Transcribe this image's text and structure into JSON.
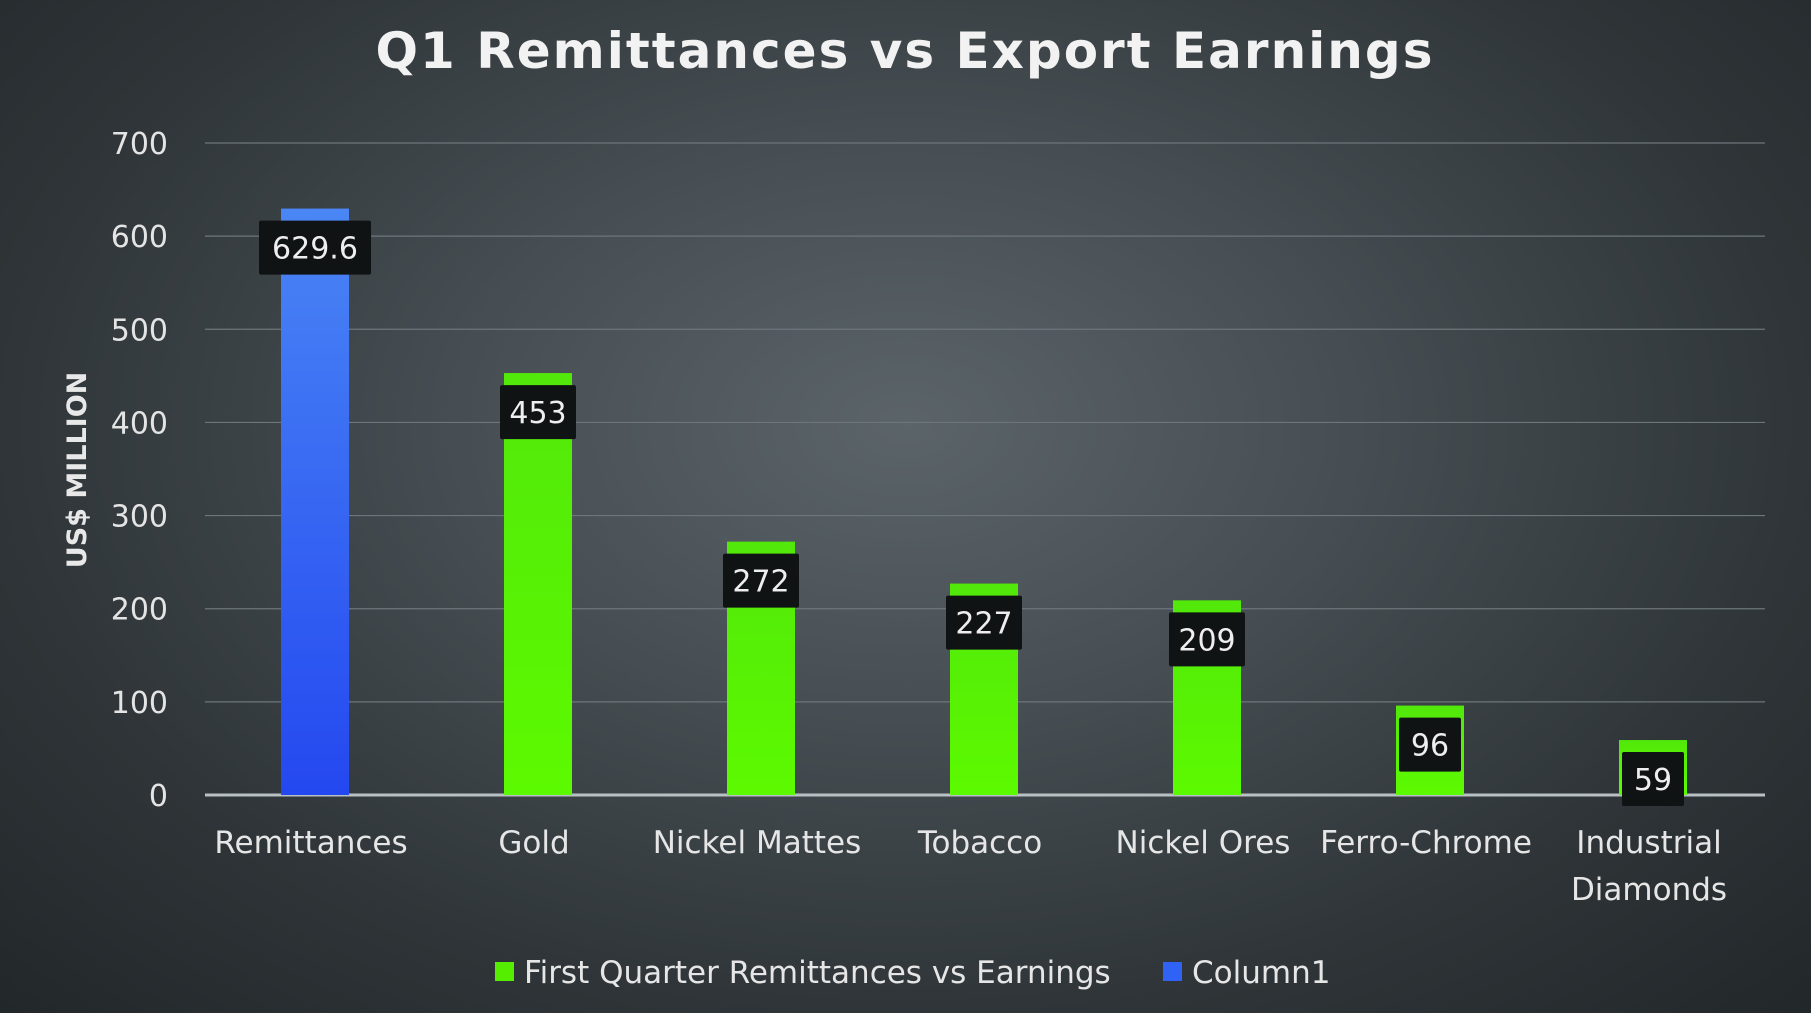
{
  "chart_data": {
    "type": "bar",
    "title": "Q1 Remittances vs Export Earnings",
    "ylabel": "US$ MILLION",
    "xlabel": "",
    "ylim": [
      0,
      700
    ],
    "yticks": [
      "0",
      "100",
      "200",
      "300",
      "400",
      "500",
      "600",
      "700"
    ],
    "ytick_values": [
      0,
      100,
      200,
      300,
      400,
      500,
      600,
      700
    ],
    "grid": true,
    "legend_position": "bottom",
    "categories": [
      [
        "Remittances"
      ],
      [
        "Gold"
      ],
      [
        "Nickel Mattes"
      ],
      [
        "Tobacco"
      ],
      [
        "Nickel Ores"
      ],
      [
        "Ferro-Chrome"
      ],
      [
        "Industrial",
        "Diamonds"
      ]
    ],
    "series": [
      {
        "name": "First Quarter Remittances vs Earnings",
        "color": "#55ee00",
        "values": [
          null,
          453,
          272,
          227,
          209,
          96,
          59
        ]
      },
      {
        "name": "Column1",
        "color": "#2f62f5",
        "values": [
          629.6,
          null,
          null,
          null,
          null,
          null,
          null
        ]
      }
    ],
    "data_labels": [
      "629.6",
      "453",
      "272",
      "227",
      "209",
      "96",
      "59"
    ]
  }
}
